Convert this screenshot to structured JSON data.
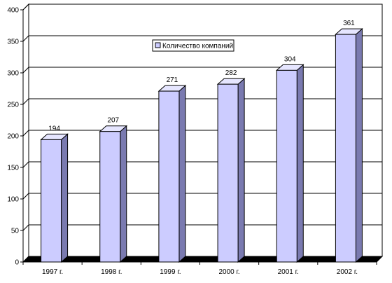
{
  "chart_data": {
    "type": "bar",
    "categories": [
      "1997 г.",
      "1998 г.",
      "1999 г.",
      "2000 г.",
      "2001 г.",
      "2002 г."
    ],
    "series": [
      {
        "name": "Количество компаний",
        "values": [
          194,
          207,
          271,
          282,
          304,
          361
        ],
        "color": "#CCCCFF",
        "side_color": "#7A7AB0",
        "top_color": "#E6E6FF"
      }
    ],
    "ylim": [
      0,
      400
    ],
    "yticks": [
      0,
      50,
      100,
      150,
      200,
      250,
      300,
      350,
      400
    ],
    "grid": true,
    "legend": "inside-top",
    "data_labels": true,
    "three_d": true,
    "floor_color": "#000000",
    "wall_color": "#FFFFFF"
  }
}
